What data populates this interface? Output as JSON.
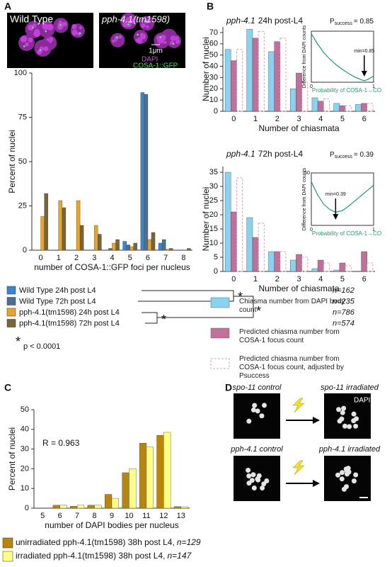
{
  "panels": {
    "a": "A",
    "b": "B",
    "c": "C",
    "d": "D"
  },
  "panel_a_images": {
    "left_label": "Wild Type",
    "right_label": "pph-4.1(tm1598)",
    "scale": "1μm",
    "stain1": "DAPI",
    "stain2": "COSA-1::GFP"
  },
  "panel_d": {
    "top_left": "spo-11 control",
    "top_right": "spo-11 irradiated",
    "stain": "DAPI",
    "bottom_left": "pph-4.1 control",
    "bottom_right": "pph-4.1 irradiated"
  },
  "chart_data": [
    {
      "type": "bar",
      "y_label": "Percent of nuclei",
      "x_label": "number of COSA-1::GFP foci per nucleus",
      "categories": [
        "0",
        "1",
        "2",
        "3",
        "4",
        "5",
        "6",
        "7",
        "8"
      ],
      "ylim": [
        0,
        100
      ],
      "yticks": [
        0,
        25,
        50,
        75,
        100
      ],
      "series": [
        {
          "name": "Wild Type 24h post L4",
          "n": "n=162",
          "color": "#3d86c6",
          "values": [
            0,
            0,
            0,
            0,
            0,
            5,
            89,
            4,
            0
          ]
        },
        {
          "name": "Wild Type 72h post L4",
          "n": "n=235",
          "color": "#4d6e8c",
          "values": [
            0,
            0,
            0,
            0,
            1,
            3,
            88,
            6,
            0
          ]
        },
        {
          "name": "pph-4.1(tm1598) 24h post L4",
          "n": "n=786",
          "color": "#e8a52a",
          "values": [
            19,
            28,
            28,
            14,
            4,
            2,
            6,
            0.5,
            0
          ]
        },
        {
          "name": "pph-4.1(tm1598) 72h post L4",
          "n": "n=574",
          "color": "#7b6436",
          "values": [
            32,
            24,
            14,
            9,
            6,
            4,
            10,
            1,
            1
          ]
        }
      ],
      "significance": {
        "marker": "*",
        "label": "p < 0.0001"
      }
    },
    {
      "type": "bar",
      "title_gene": "pph-4.1",
      "title": "24h post-L4",
      "annotation": "P",
      "annotation_sub": "success",
      "annotation_value": "= 0.85",
      "y_label": "Number of nuclei",
      "x_label": "Number of chiasmata",
      "categories": [
        "0",
        "1",
        "2",
        "3",
        "4",
        "5",
        "6"
      ],
      "ylim": [
        0,
        75
      ],
      "yticks": [
        0,
        10,
        20,
        30,
        40,
        50,
        60,
        70
      ],
      "series": [
        {
          "name": "Chiasma number from DAPI body count",
          "color": "#86d4f2",
          "values": [
            55,
            73,
            53,
            20,
            12,
            7,
            6
          ]
        },
        {
          "name": "Predicted chiasma number from COSA-1 focus count",
          "color": "#c0709b",
          "values": [
            45,
            65,
            62,
            34,
            9,
            5,
            7
          ]
        },
        {
          "name": "Predicted chiasma number from COSA-1 focus count, adjusted by Psuccess",
          "color": "#d9a0b0",
          "style": "dashed",
          "values": [
            55,
            71,
            65,
            26,
            11,
            5,
            7
          ]
        }
      ]
    },
    {
      "type": "line",
      "x_label": "Probability of COSA-1→CO",
      "y_label": "Difference from DAPI counts",
      "annotation": "min=0.85",
      "min_x": 0.85,
      "xlim": [
        0,
        1
      ],
      "xticks": [
        0,
        1
      ],
      "ylim": [
        0,
        100
      ],
      "color": "#1f9a6a",
      "x": [
        0,
        0.1,
        0.2,
        0.3,
        0.4,
        0.5,
        0.6,
        0.7,
        0.8,
        0.85,
        0.9,
        1
      ],
      "values": [
        95,
        75,
        58,
        45,
        34,
        25,
        17,
        10,
        5,
        3,
        5,
        12
      ]
    },
    {
      "type": "bar",
      "title_gene": "pph-4.1",
      "title": "72h post-L4",
      "annotation": "P",
      "annotation_sub": "success",
      "annotation_value": "= 0.39",
      "y_label": "Number of nuclei",
      "x_label": "Number of chiasmata",
      "categories": [
        "0",
        "1",
        "2",
        "3",
        "4",
        "5",
        "6"
      ],
      "ylim": [
        0,
        37
      ],
      "yticks": [
        0,
        5,
        10,
        15,
        20,
        25,
        30,
        35
      ],
      "series": [
        {
          "name": "Chiasma number from DAPI body count",
          "color": "#86d4f2",
          "values": [
            35,
            19,
            7,
            4,
            1,
            0.5,
            0
          ]
        },
        {
          "name": "Predicted chiasma number from COSA-1 focus count",
          "color": "#c0709b",
          "values": [
            21,
            12,
            7,
            6,
            4,
            3,
            7
          ]
        },
        {
          "name": "Predicted chiasma number from COSA-1 focus count, adjusted by Psuccess",
          "color": "#d9a0b0",
          "style": "dashed",
          "values": [
            33,
            17,
            7,
            5,
            3,
            2,
            3
          ]
        }
      ]
    },
    {
      "type": "line",
      "x_label": "Probability of COSA-1→CO",
      "y_label": "Difference from DAPI counts",
      "annotation": "min=0.39",
      "min_x": 0.39,
      "xlim": [
        0,
        1
      ],
      "xticks": [
        0,
        1
      ],
      "ylim": [
        0,
        60
      ],
      "yticks": [
        60
      ],
      "color": "#1f9a6a",
      "x": [
        0,
        0.1,
        0.2,
        0.3,
        0.39,
        0.5,
        0.6,
        0.7,
        0.8,
        0.9,
        1
      ],
      "values": [
        50,
        35,
        24,
        18,
        15,
        17,
        22,
        28,
        34,
        40,
        46
      ]
    },
    {
      "type": "bar",
      "y_label": "Percent of nuclei",
      "x_label": "number of DAPI bodies per nucleus",
      "annotation": "R = 0.963",
      "categories": [
        "5",
        "6",
        "7",
        "8",
        "9",
        "10",
        "11",
        "12",
        "13"
      ],
      "ylim": [
        0,
        50
      ],
      "yticks": [
        0,
        10,
        20,
        30,
        40,
        50
      ],
      "series": [
        {
          "name": "unirradiated pph-4.1(tm1598) 38h post L4,",
          "n": "n=129",
          "color": "#b8860b",
          "values": [
            0,
            1.5,
            1,
            1.5,
            7,
            18,
            33,
            37,
            0.8
          ]
        },
        {
          "name": "irradiated pph-4.1(tm1598) 38h post L4,",
          "n": "n=147",
          "color": "#ffff88",
          "values": [
            0,
            1.5,
            1.5,
            1.5,
            5,
            20,
            31,
            38.5,
            0.7
          ]
        }
      ]
    }
  ]
}
